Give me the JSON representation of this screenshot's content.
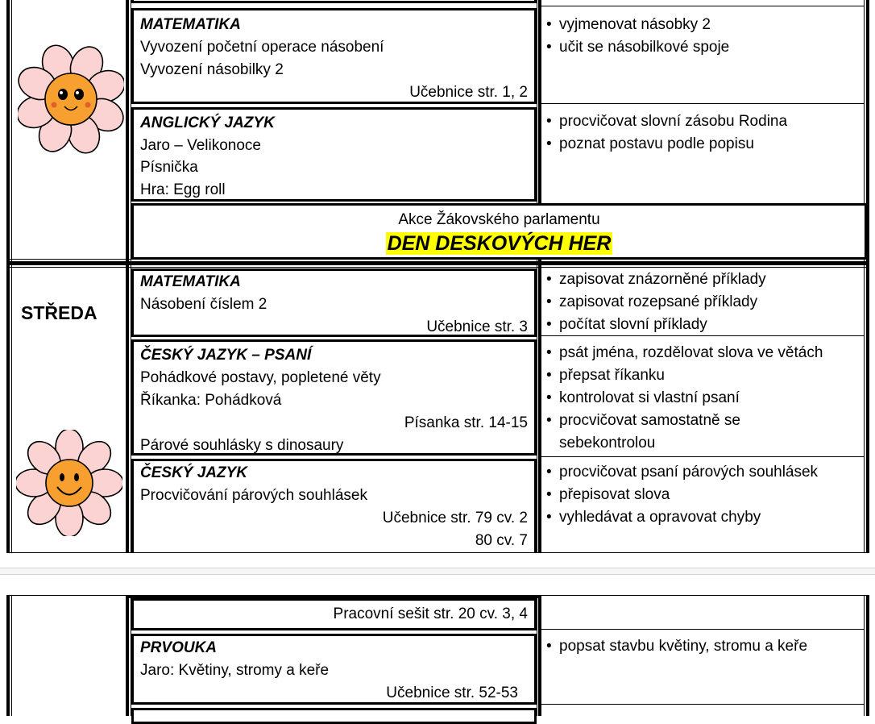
{
  "document": {
    "page1": {
      "monday_rows": [
        {
          "subject": "MATEMATIKA",
          "lines": [
            "Vyvození početní operace násobení",
            "Vyvození násobilky 2"
          ],
          "reference": "Učebnice str. 1, 2",
          "goals": [
            "vyjmenovat násobky 2",
            "učit se násobilkové spoje"
          ]
        },
        {
          "subject": "ANGLICKÝ JAZYK",
          "lines": [
            "Jaro – Velikonoce",
            "Písnička",
            "Hra: Egg roll"
          ],
          "goals": [
            "procvičovat slovní zásobu Rodina",
            "poznat postavu podle popisu"
          ]
        }
      ],
      "event": {
        "subtitle": "Akce Žákovského parlamentu",
        "title": "DEN DESKOVÝCH HER",
        "highlight_color": "#ffff00"
      },
      "wednesday": {
        "day_label": "STŘEDA",
        "rows": [
          {
            "subject": "MATEMATIKA",
            "lines": [
              "Násobení číslem 2"
            ],
            "reference": "Učebnice str. 3",
            "goals": [
              "zapisovat znázorněné příklady",
              "zapisovat rozepsané příklady",
              "počítat slovní příklady"
            ]
          },
          {
            "subject": "ČESKÝ JAZYK – PSANÍ",
            "lines": [
              "Pohádkové postavy, popletené věty",
              "Říkanka: Pohádková"
            ],
            "reference": "Písanka str. 14-15",
            "extra_line": "Párové souhlásky s dinosaury",
            "goals": [
              "psát jména, rozdělovat slova ve větách",
              "přepsat říkanku",
              "kontrolovat si vlastní psaní",
              "procvičovat samostatně se",
              "sebekontrolou"
            ]
          },
          {
            "subject": "ČESKÝ JAZYK",
            "lines": [
              "Procvičování párových souhlásek"
            ],
            "reference": "Učebnice str. 79 cv. 2",
            "reference2": "80 cv. 7",
            "goals": [
              "procvičovat psaní párových souhlásek",
              "přepisovat slova",
              "vyhledávat a opravovat chyby"
            ]
          }
        ]
      }
    },
    "page2": {
      "rows": [
        {
          "reference": "Pracovní sešit str. 20 cv. 3, 4"
        },
        {
          "subject": "PRVOUKA",
          "lines": [
            "Jaro: Květiny, stromy a keře"
          ],
          "reference": "Učebnice str. 52-53",
          "goals": [
            "popsat stavbu květiny, stromu a keře"
          ]
        }
      ]
    },
    "colors": {
      "petal": "#fbd3d3",
      "flower_center": "#f7a030",
      "page_separator": "#d4d4d4"
    },
    "icons": [
      "smiling-flower-icon",
      "smiling-flower-icon"
    ]
  }
}
